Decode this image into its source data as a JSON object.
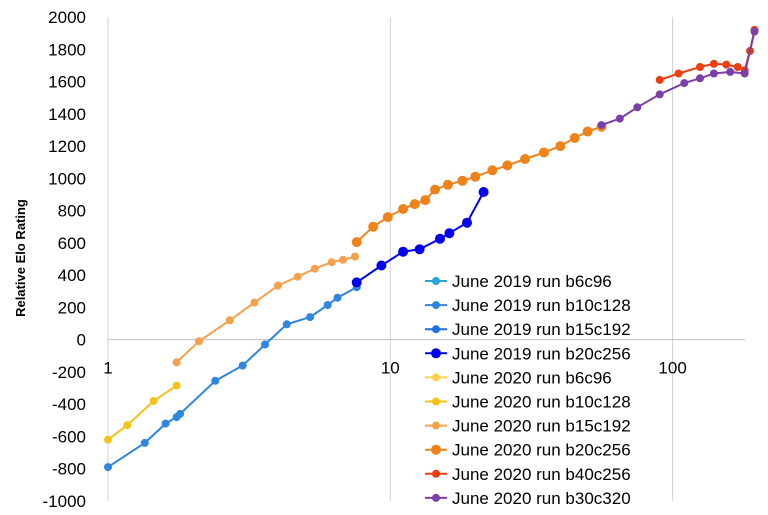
{
  "chart_data": {
    "type": "line",
    "title": "",
    "xlabel": "",
    "ylabel": "Relative Elo Rating",
    "x_scale": "log",
    "xlim": [
      1,
      250
    ],
    "ylim": [
      -1000,
      2000
    ],
    "x_ticks": [
      1,
      10,
      100
    ],
    "x_tick_labels": [
      "1",
      "10",
      "100"
    ],
    "y_ticks": [
      -1000,
      -800,
      -600,
      -400,
      -200,
      0,
      200,
      400,
      600,
      800,
      1000,
      1200,
      1400,
      1600,
      1800,
      2000
    ],
    "y_tick_labels": [
      "-1000",
      "-800",
      "-600",
      "-400",
      "-200",
      "0",
      "200",
      "400",
      "600",
      "800",
      "1000",
      "1200",
      "1400",
      "1600",
      "1800",
      "2000"
    ],
    "grid": "vertical major gridlines at 1, 10, 100",
    "legend_position": "bottom-right",
    "series": [
      {
        "name": "June 2019 run b6c96",
        "color": "#29a3d8",
        "points": []
      },
      {
        "name": "June 2019 run b10c128",
        "color": "#2e86de",
        "points": [
          [
            1.0,
            -790
          ],
          [
            1.35,
            -640
          ],
          [
            1.6,
            -520
          ],
          [
            1.75,
            -480
          ],
          [
            1.8,
            -460
          ],
          [
            2.4,
            -255
          ],
          [
            3.0,
            -160
          ],
          [
            3.6,
            -30
          ],
          [
            4.3,
            95
          ],
          [
            5.2,
            140
          ],
          [
            6.0,
            215
          ],
          [
            6.5,
            260
          ],
          [
            7.6,
            325
          ]
        ]
      },
      {
        "name": "June 2019 run b15c192",
        "color": "#1f6fe0",
        "points": []
      },
      {
        "name": "June 2019 run b20c256",
        "color": "#0000ee",
        "points": [
          [
            7.6,
            355
          ],
          [
            9.3,
            460
          ],
          [
            11.1,
            545
          ],
          [
            12.7,
            560
          ],
          [
            15.0,
            625
          ],
          [
            16.2,
            660
          ],
          [
            18.7,
            725
          ],
          [
            21.4,
            915
          ]
        ]
      },
      {
        "name": "June 2020 run b6c96",
        "color": "#ffd24a",
        "points": []
      },
      {
        "name": "June 2020 run b10c128",
        "color": "#f6c21a",
        "points": [
          [
            1.0,
            -620
          ],
          [
            1.17,
            -530
          ],
          [
            1.45,
            -380
          ],
          [
            1.75,
            -285
          ]
        ]
      },
      {
        "name": "June 2020 run b15c192",
        "color": "#f5a04a",
        "points": [
          [
            1.75,
            -140
          ],
          [
            2.1,
            -10
          ],
          [
            2.7,
            120
          ],
          [
            3.3,
            230
          ],
          [
            4.0,
            335
          ],
          [
            4.7,
            390
          ],
          [
            5.4,
            440
          ],
          [
            6.2,
            480
          ],
          [
            6.8,
            495
          ],
          [
            7.5,
            515
          ]
        ]
      },
      {
        "name": "June 2020 run b20c256",
        "color": "#f0821a",
        "points": [
          [
            7.6,
            605
          ],
          [
            8.7,
            700
          ],
          [
            9.8,
            760
          ],
          [
            11.1,
            810
          ],
          [
            12.2,
            840
          ],
          [
            13.3,
            865
          ],
          [
            14.4,
            930
          ],
          [
            16.0,
            960
          ],
          [
            18.0,
            985
          ],
          [
            20.0,
            1010
          ],
          [
            23.0,
            1050
          ],
          [
            26.0,
            1080
          ],
          [
            30.0,
            1120
          ],
          [
            35.0,
            1160
          ],
          [
            40.0,
            1200
          ],
          [
            45.0,
            1250
          ],
          [
            50.0,
            1290
          ],
          [
            56.0,
            1320
          ]
        ]
      },
      {
        "name": "June 2020 run b40c256",
        "color": "#ee3d10",
        "points": [
          [
            90.0,
            1610
          ],
          [
            105.0,
            1650
          ],
          [
            125.0,
            1690
          ],
          [
            140.0,
            1710
          ],
          [
            155.0,
            1705
          ],
          [
            170.0,
            1690
          ],
          [
            180.0,
            1670
          ],
          [
            188.0,
            1790
          ],
          [
            195.0,
            1920
          ]
        ]
      },
      {
        "name": "June 2020 run b30c320",
        "color": "#7a3fa8",
        "points": [
          [
            56.0,
            1330
          ],
          [
            65.0,
            1370
          ],
          [
            75.0,
            1440
          ],
          [
            90.0,
            1520
          ],
          [
            110.0,
            1590
          ],
          [
            125.0,
            1620
          ],
          [
            140.0,
            1650
          ],
          [
            160.0,
            1660
          ],
          [
            180.0,
            1650
          ],
          [
            195.0,
            1910
          ]
        ]
      }
    ]
  }
}
